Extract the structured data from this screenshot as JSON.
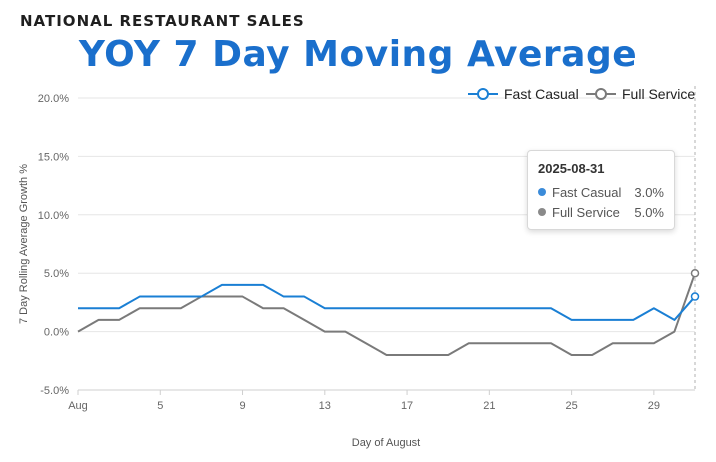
{
  "header": {
    "supertitle": "NATIONAL RESTAURANT SALES",
    "title": "YOY 7 Day Moving Average"
  },
  "colors": {
    "fast_casual": "#1a7fd4",
    "full_service": "#7a7a7a",
    "title": "#1a6fcc"
  },
  "chart_data": {
    "type": "line",
    "title": "YOY 7 Day Moving Average",
    "xlabel": "Day of August",
    "ylabel": "7 Day Rolling Average Growth %",
    "x": [
      1,
      2,
      3,
      4,
      5,
      6,
      7,
      8,
      9,
      10,
      11,
      12,
      13,
      14,
      15,
      16,
      17,
      18,
      19,
      20,
      21,
      22,
      23,
      24,
      25,
      26,
      27,
      28,
      29,
      30,
      31
    ],
    "xlim": [
      1,
      31
    ],
    "xticks": [
      1,
      5,
      9,
      13,
      17,
      21,
      25,
      29
    ],
    "xtick_labels": [
      "Aug",
      "5",
      "9",
      "13",
      "17",
      "21",
      "25",
      "29"
    ],
    "ylim": [
      -5,
      20
    ],
    "yticks": [
      -5,
      0,
      5,
      10,
      15,
      20
    ],
    "ytick_labels": [
      "-5.0%",
      "0.0%",
      "5.0%",
      "10.0%",
      "15.0%",
      "20.0%"
    ],
    "series": [
      {
        "name": "Fast Casual",
        "color": "#1a7fd4",
        "values": [
          2,
          2,
          2,
          3,
          3,
          3,
          3,
          4,
          4,
          4,
          3,
          3,
          2,
          2,
          2,
          2,
          2,
          2,
          2,
          2,
          2,
          2,
          2,
          2,
          1,
          1,
          1,
          1,
          2,
          1,
          3
        ]
      },
      {
        "name": "Full Service",
        "color": "#7a7a7a",
        "values": [
          0,
          1,
          1,
          2,
          2,
          2,
          3,
          3,
          3,
          2,
          2,
          1,
          0,
          0,
          -1,
          -2,
          -2,
          -2,
          -2,
          -1,
          -1,
          -1,
          -1,
          -1,
          -2,
          -2,
          -1,
          -1,
          -1,
          0,
          5
        ]
      }
    ],
    "legend": [
      "Fast Casual",
      "Full Service"
    ],
    "legend_position": "top-right",
    "grid": true,
    "tooltip": {
      "date": "2025-08-31",
      "rows": [
        {
          "name": "Fast Casual",
          "value": "3.0%",
          "color": "#3b8bd9"
        },
        {
          "name": "Full Service",
          "value": "5.0%",
          "color": "#8a8a8a"
        }
      ]
    }
  }
}
